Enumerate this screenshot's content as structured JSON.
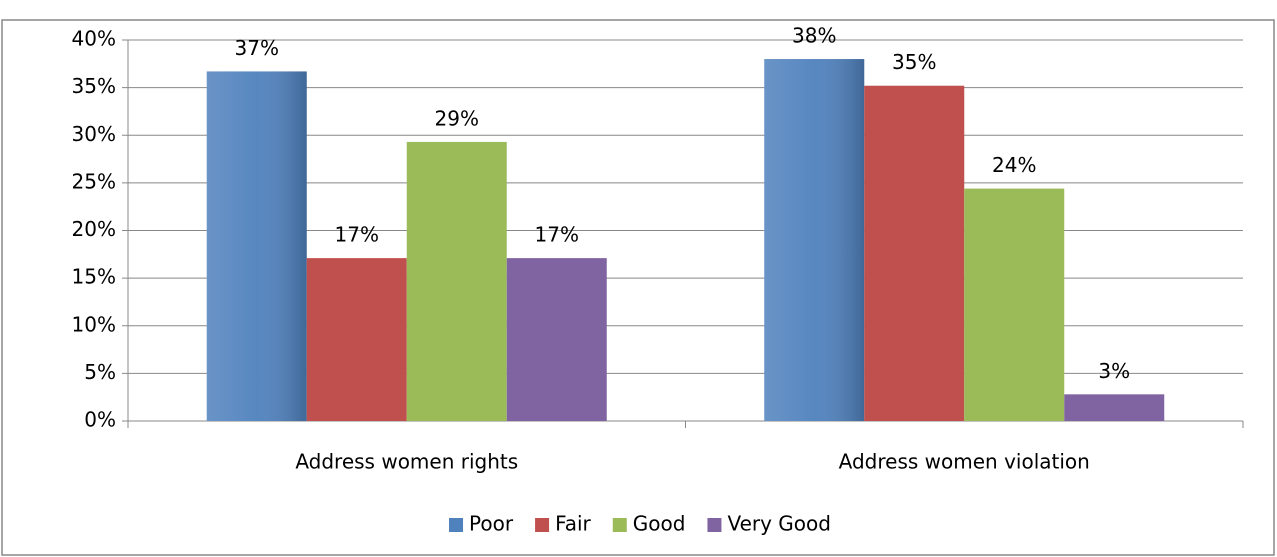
{
  "chart_data": {
    "type": "bar",
    "categories": [
      "Address women rights",
      "Address women violation"
    ],
    "series": [
      {
        "name": "Poor",
        "color": "#4f81bd",
        "values": [
          36.7,
          38
        ],
        "value_labels": [
          "37%",
          "38%"
        ]
      },
      {
        "name": "Fair",
        "color": "#c0504d",
        "values": [
          17.1,
          35.2
        ],
        "value_labels": [
          "17%",
          "35%"
        ]
      },
      {
        "name": "Good",
        "color": "#9bbb59",
        "values": [
          29.3,
          24.4
        ],
        "value_labels": [
          "29%",
          "24%"
        ]
      },
      {
        "name": "Very Good",
        "color": "#8064a2",
        "values": [
          17.1,
          2.8
        ],
        "value_labels": [
          "17%",
          "3%"
        ]
      }
    ],
    "ylim": [
      0,
      40
    ],
    "yticks": [
      {
        "value": 0,
        "label": "0%"
      },
      {
        "value": 5,
        "label": "5%"
      },
      {
        "value": 10,
        "label": "10%"
      },
      {
        "value": 15,
        "label": "15%"
      },
      {
        "value": 20,
        "label": "20%"
      },
      {
        "value": 25,
        "label": "25%"
      },
      {
        "value": 30,
        "label": "30%"
      },
      {
        "value": 35,
        "label": "35%"
      },
      {
        "value": 40,
        "label": "40%"
      }
    ],
    "grid": true,
    "legend": "bottom"
  }
}
